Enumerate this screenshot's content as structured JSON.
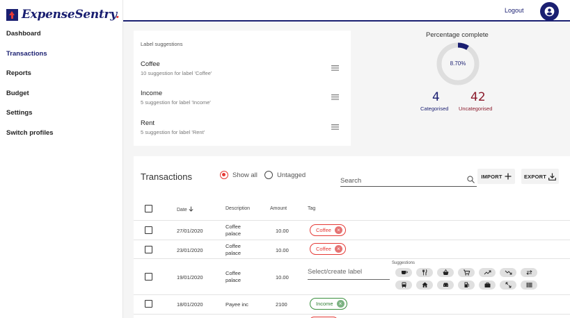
{
  "brand": {
    "name": "ExpenseSentry",
    "dot": "."
  },
  "nav": [
    "Dashboard",
    "Transactions",
    "Reports",
    "Budget",
    "Settings",
    "Switch profiles"
  ],
  "topbar": {
    "logout": "Logout"
  },
  "label_suggestions": {
    "title": "Label suggestions",
    "items": [
      {
        "name": "Coffee",
        "desc": "10 suggestion for label 'Coffee'"
      },
      {
        "name": "Income",
        "desc": "5 suggestion for label 'Income'"
      },
      {
        "name": "Rent",
        "desc": "5 suggestion for label 'Rent'"
      }
    ]
  },
  "progress": {
    "title": "Percentage complete",
    "label": "8.70%",
    "fraction": 0.087,
    "categorised": {
      "value": "4",
      "label": "Categorised"
    },
    "uncategorised": {
      "value": "42",
      "label": "Uncategorised"
    }
  },
  "transactions": {
    "title": "Transactions",
    "filter_all": "Show all",
    "filter_untagged": "Untagged",
    "search_placeholder": "Search",
    "import_label": "IMPORT",
    "export_label": "EXPORT",
    "columns": {
      "date": "Date",
      "description": "Description",
      "amount": "Amount",
      "tag": "Tag"
    },
    "rows": [
      {
        "date": "27/01/2020",
        "description": [
          "Coffee",
          "palace"
        ],
        "amount": "10.00",
        "tag": "Coffee"
      },
      {
        "date": "23/01/2020",
        "description": [
          "Coffee",
          "palace"
        ],
        "amount": "10.00",
        "tag": "Coffee"
      },
      {
        "date": "19/01/2020",
        "description": [
          "Coffee",
          "palace"
        ],
        "amount": "10.00",
        "label_placeholder": "Select/create label",
        "suggestions_label": "Suggestions"
      },
      {
        "date": "18/01/2020",
        "description": [
          "Payee inc"
        ],
        "amount": "2100",
        "tag": "Income"
      }
    ]
  },
  "suggestion_icons": [
    "coffee-icon",
    "restaurant-icon",
    "basket-icon",
    "cart-icon",
    "trending-up-icon",
    "trending-down-icon",
    "swap-icon",
    "bus-icon",
    "home-icon",
    "car-icon",
    "fuel-icon",
    "briefcase-icon",
    "expand-icon",
    "barcode-icon"
  ],
  "colors": {
    "brand": "#1a1f71",
    "accent": "#e53935",
    "income": "#388e3c"
  }
}
